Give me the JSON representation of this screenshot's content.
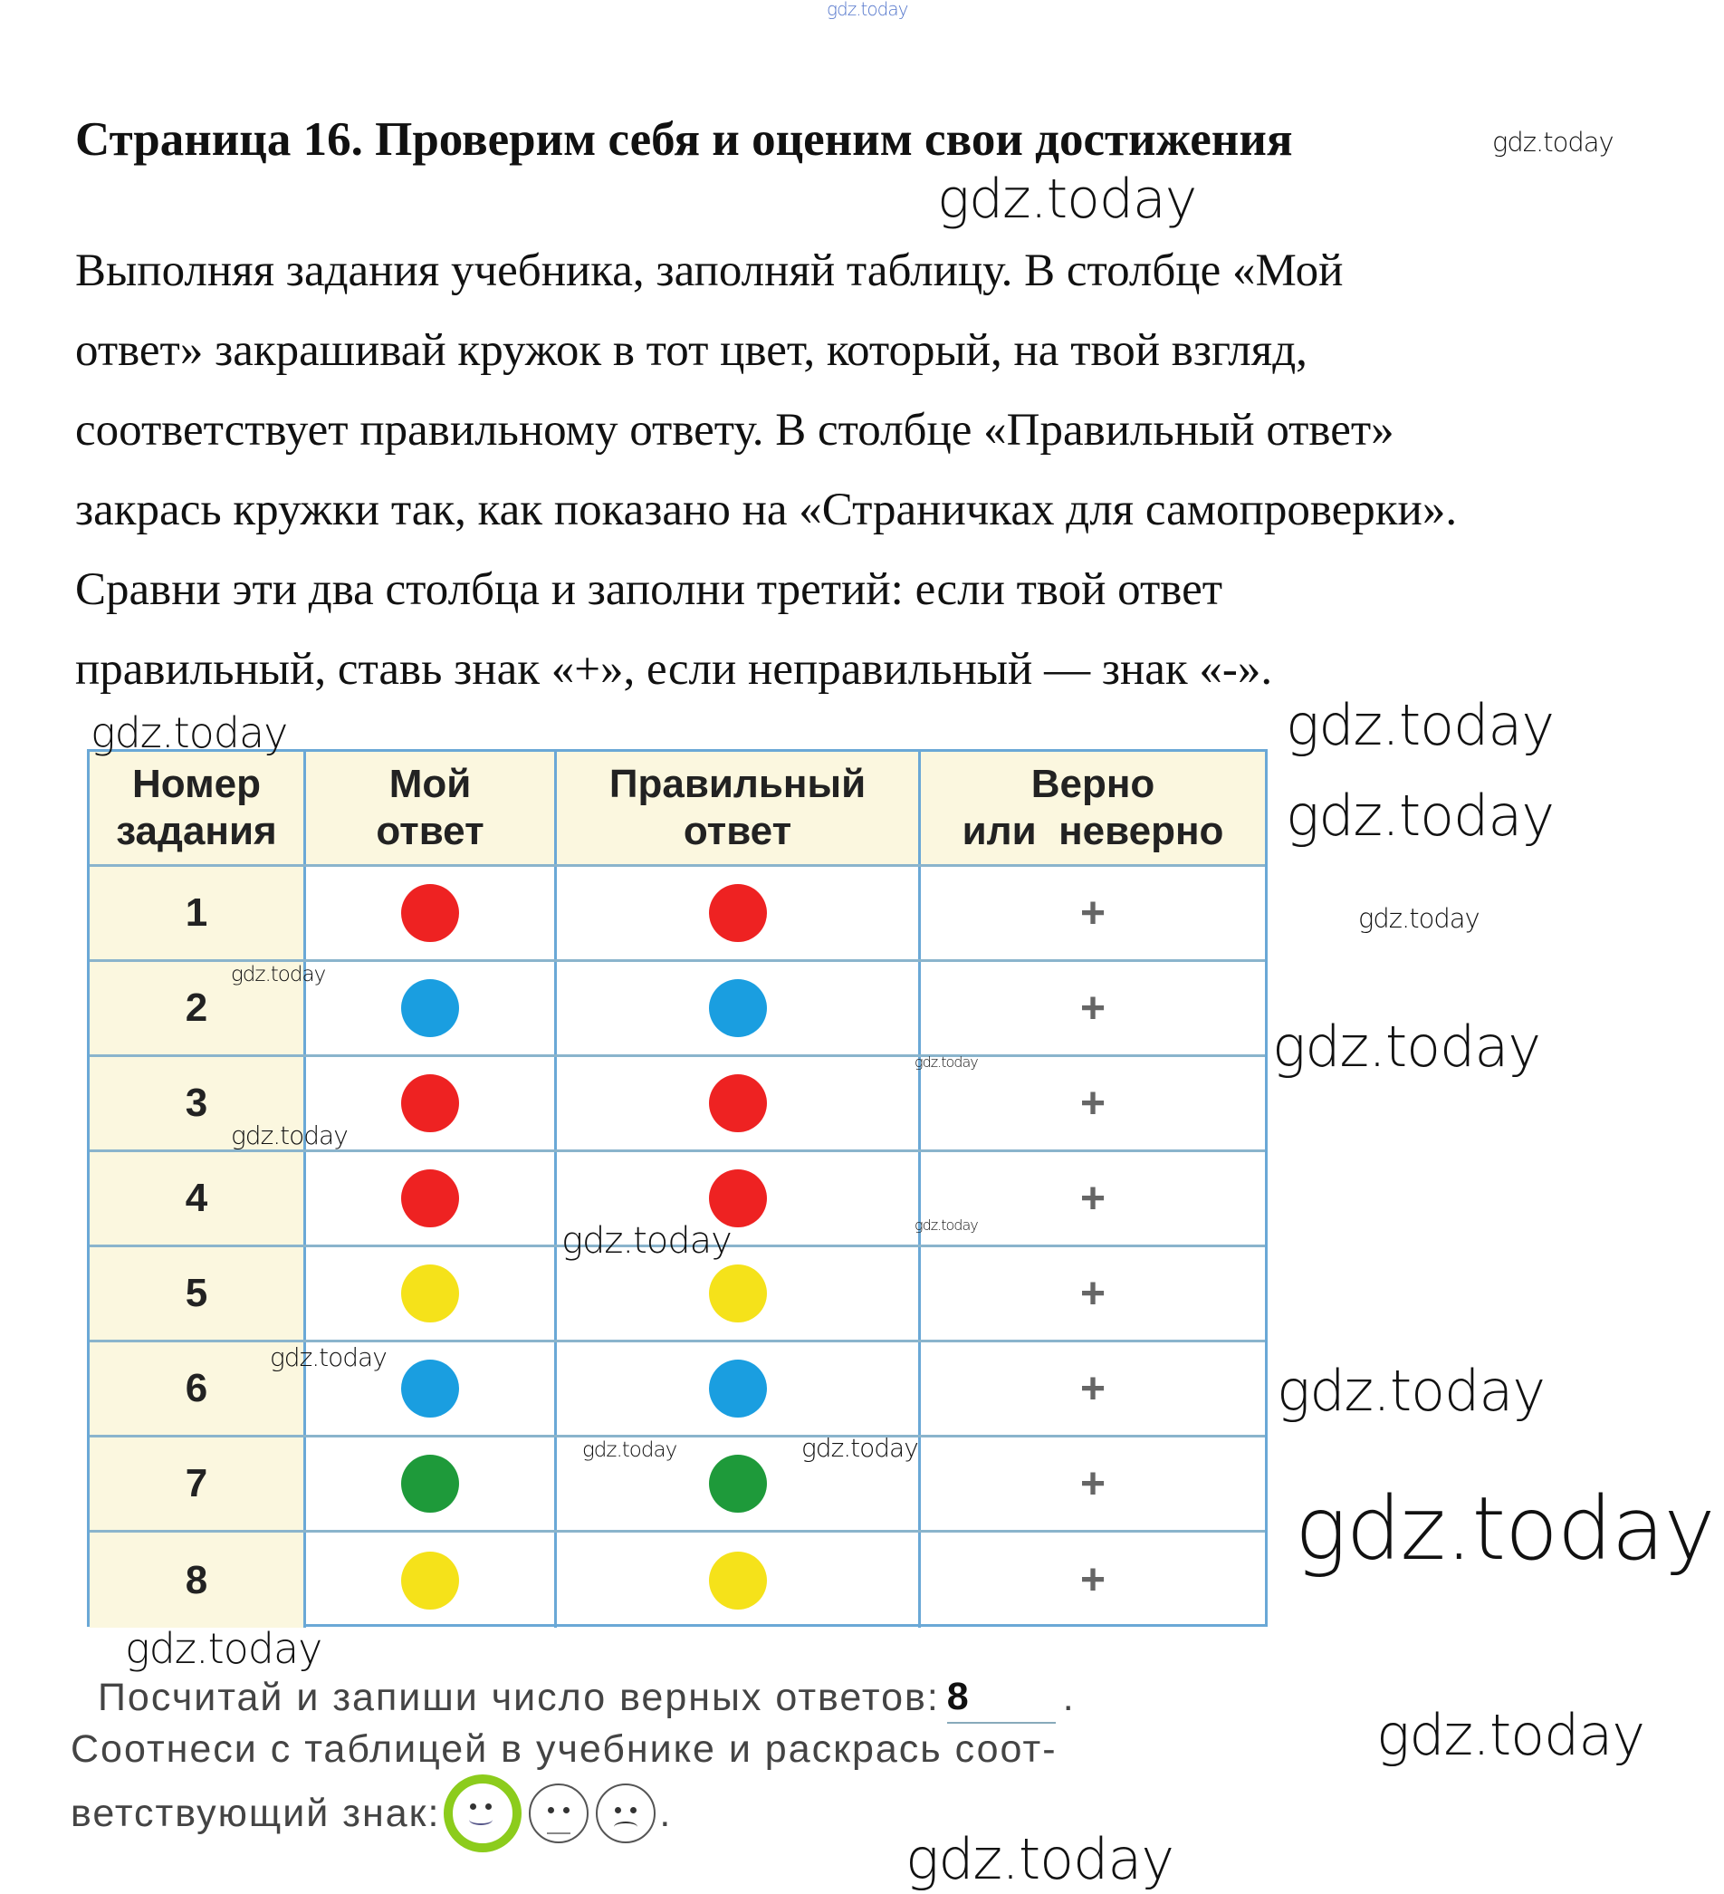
{
  "title": "Страница 16. Проверим себя и оценим свои достижения",
  "paragraph_lines": [
    "Выполняя задания учебника, заполняй таблицу. В столбце «Мой",
    "ответ» закрашивай кружок в тот цвет, который, на твой взгляд,",
    "соответствует правильному ответу. В столбце «Правильный ответ»",
    "закрась кружки так, как показано на «Страничках для самопроверки».",
    "Сравни эти два столбца и заполни третий: если твой ответ",
    "правильный, ставь знак «+», если неправильный — знак «-»."
  ],
  "table": {
    "headers": [
      "Номер\nзадания",
      "Мой\nответ",
      "Правильный\nответ",
      "Верно\nили  неверно"
    ],
    "rows": [
      {
        "n": "1",
        "my": "#ee2222",
        "correct": "#ee2222",
        "mark": "+"
      },
      {
        "n": "2",
        "my": "#1a9ee0",
        "correct": "#1a9ee0",
        "mark": "+"
      },
      {
        "n": "3",
        "my": "#ee2222",
        "correct": "#ee2222",
        "mark": "+"
      },
      {
        "n": "4",
        "my": "#ee2222",
        "correct": "#ee2222",
        "mark": "+"
      },
      {
        "n": "5",
        "my": "#f5e21a",
        "correct": "#f5e21a",
        "mark": "+"
      },
      {
        "n": "6",
        "my": "#1a9ee0",
        "correct": "#1a9ee0",
        "mark": "+"
      },
      {
        "n": "7",
        "my": "#1e9a3a",
        "correct": "#1e9a3a",
        "mark": "+"
      },
      {
        "n": "8",
        "my": "#f5e21a",
        "correct": "#f5e21a",
        "mark": "+"
      }
    ]
  },
  "bottom": {
    "line1": "Посчитай и запиши число верных ответов:",
    "answer": "8",
    "line2": "Соотнеси с таблицей в учебнике и раскрась соот-",
    "line3": "ветствующий знак:",
    "faces": [
      "smile-icon",
      "neutral-icon",
      "sad-icon"
    ],
    "selected_face": "smile-icon",
    "selected_color": "#8ccc1c"
  },
  "watermark": "gdz.today"
}
